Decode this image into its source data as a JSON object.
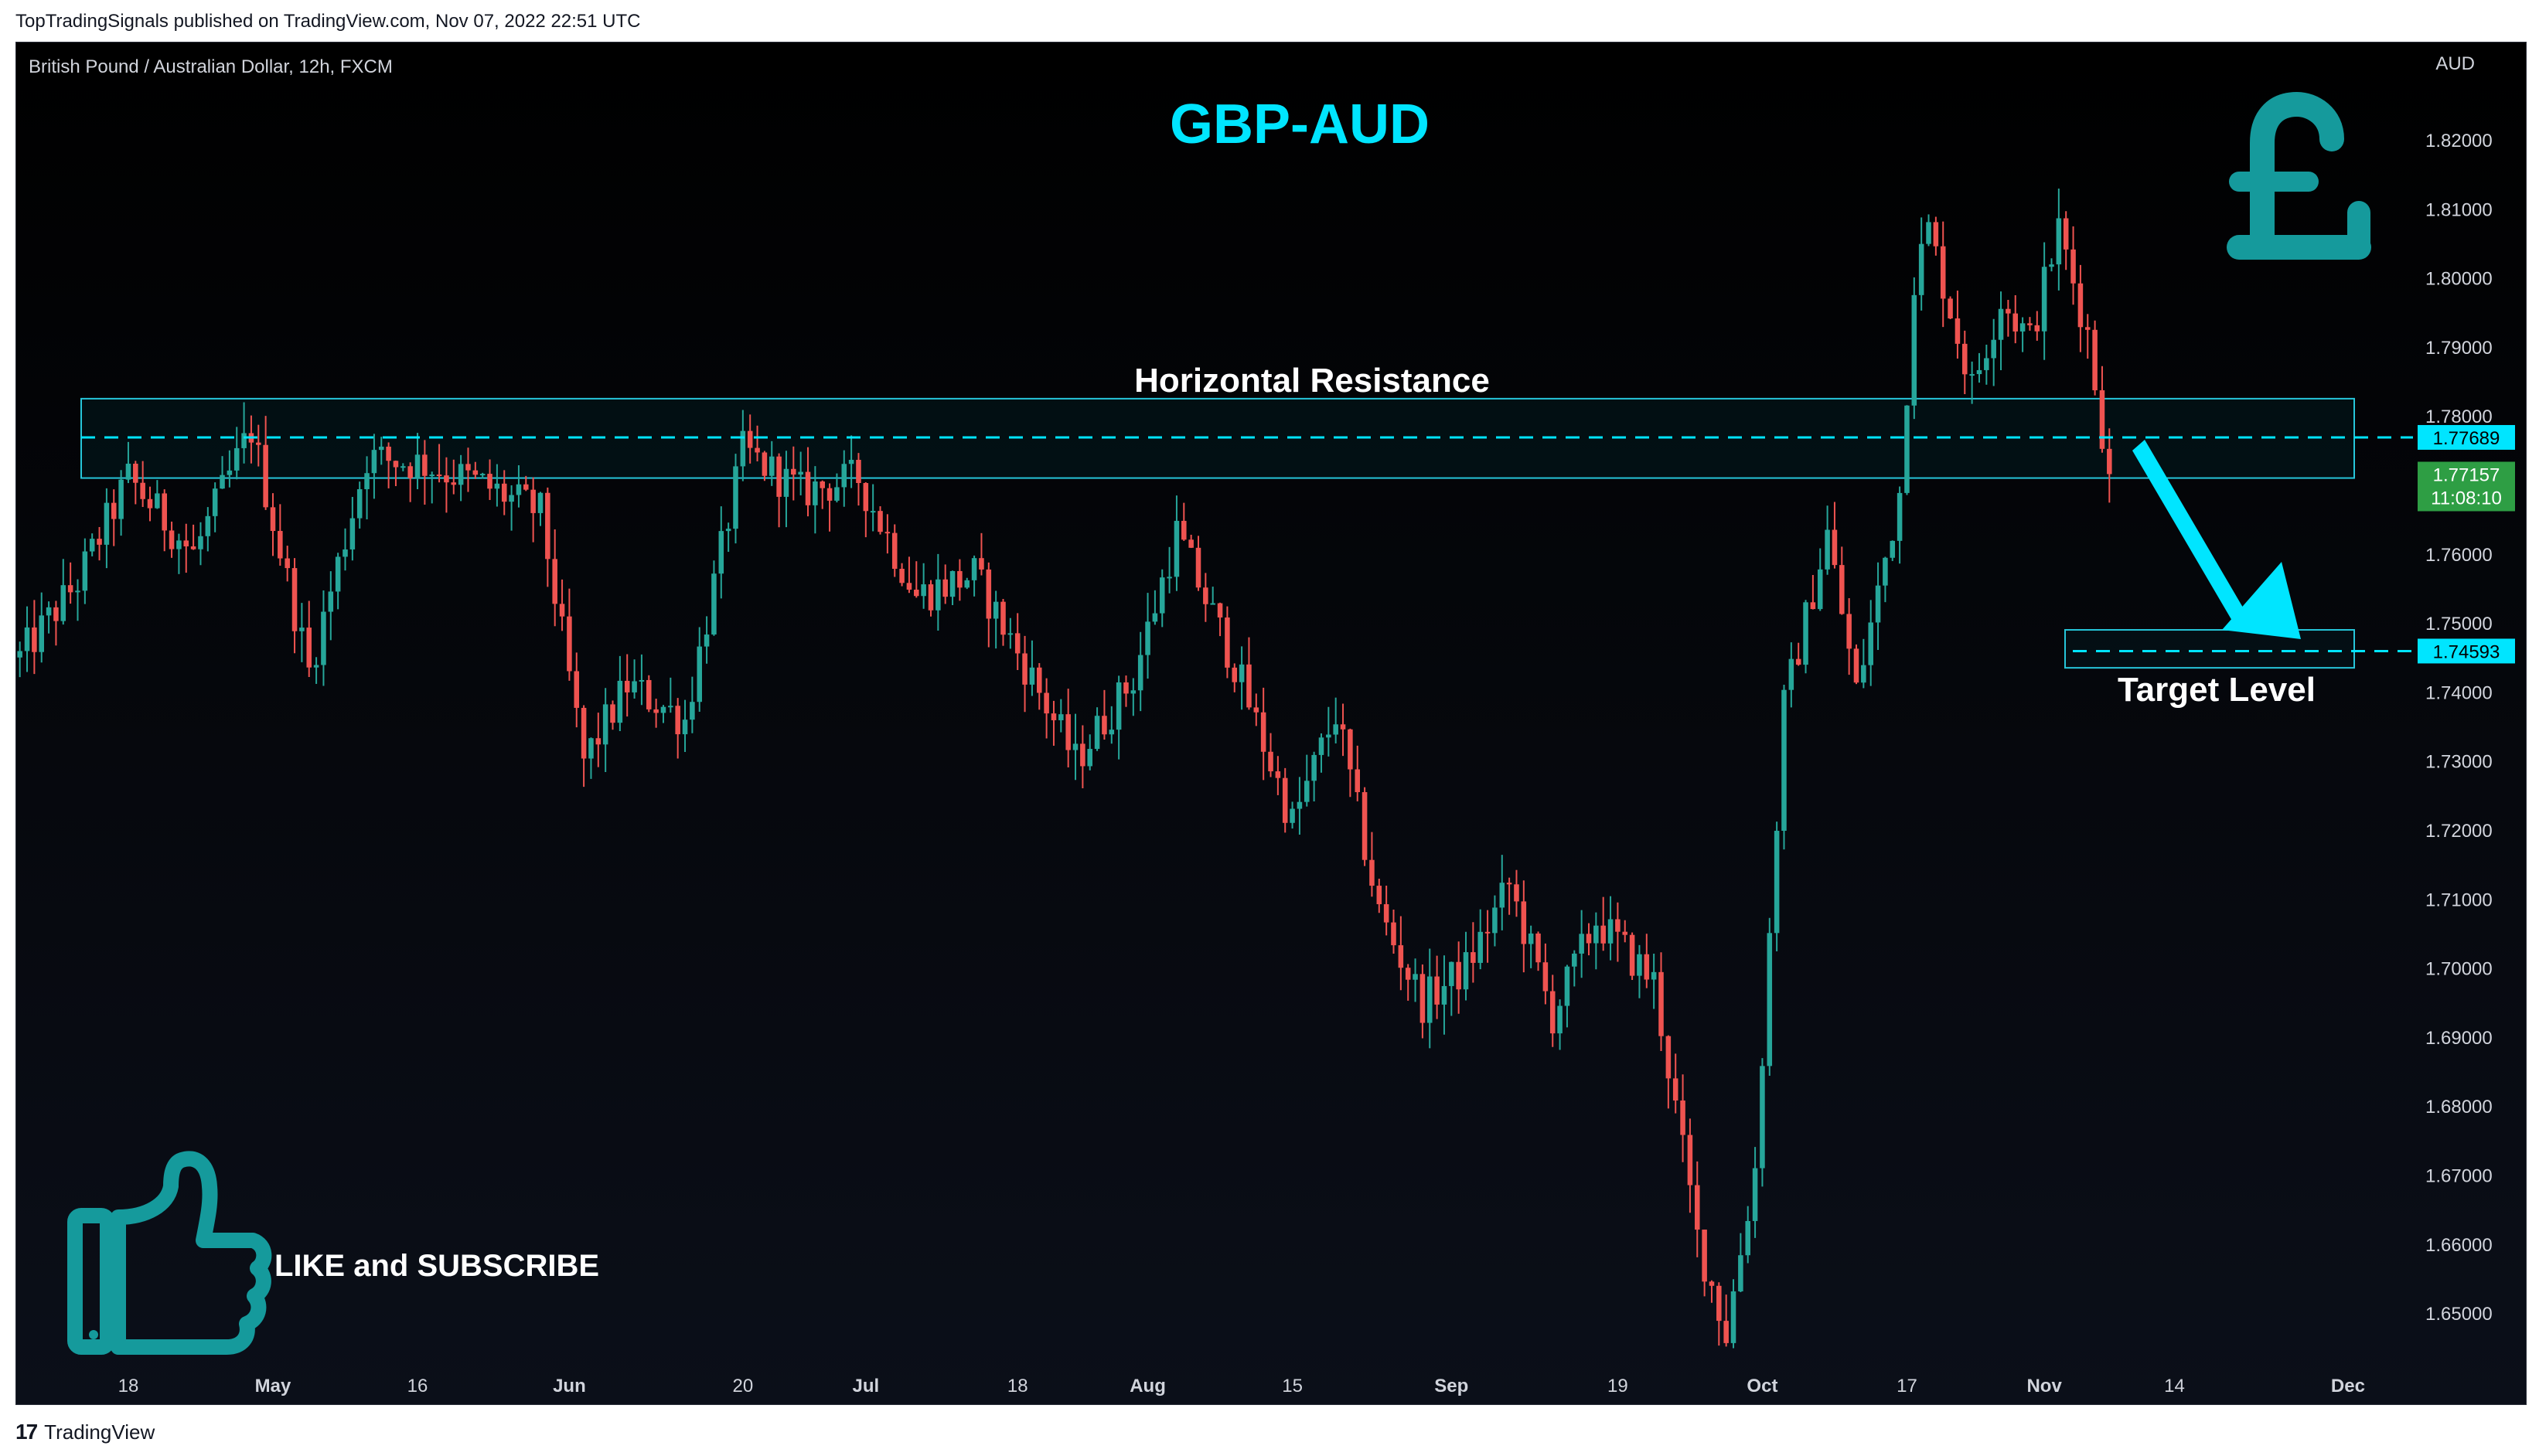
{
  "header": {
    "published_by": "TopTradingSignals published on TradingView.com, Nov 07, 2022 22:51 UTC"
  },
  "footer": {
    "logo": "17",
    "brand": "TradingView"
  },
  "panel": {
    "symbol_label": "British Pound / Australian Dollar, 12h, FXCM",
    "currency": "AUD"
  },
  "colors": {
    "up": "#26a69a",
    "down": "#ef5350",
    "accent": "#00e5ff",
    "background": "#000000",
    "text": "#d1d4dc",
    "last_price": "#2e9e44",
    "icon": "#159a9c"
  },
  "icons": [
    "pound-sterling-icon",
    "thumbs-up-icon"
  ],
  "chart_data": {
    "type": "candlestick",
    "title": "GBP-AUD",
    "symbol": "British Pound / Australian Dollar, 12h, FXCM",
    "y_unit": "AUD",
    "ylim": [
      1.64,
      1.83
    ],
    "y_ticks": [
      "1.82000",
      "1.81000",
      "1.80000",
      "1.79000",
      "1.78000",
      "1.77000",
      "1.76000",
      "1.75000",
      "1.74000",
      "1.73000",
      "1.72000",
      "1.71000",
      "1.70000",
      "1.69000",
      "1.68000",
      "1.67000",
      "1.66000",
      "1.65000"
    ],
    "x_ticks": [
      "18",
      "May",
      "16",
      "Jun",
      "20",
      "Jul",
      "18",
      "Aug",
      "15",
      "Sep",
      "19",
      "Oct",
      "17",
      "Nov",
      "14",
      "Dec"
    ],
    "x_tick_bars": [
      15,
      35,
      55,
      76,
      100,
      117,
      138,
      156,
      176,
      198,
      221,
      241,
      261,
      280,
      298,
      322
    ],
    "bar_count": 327,
    "current_bar": 289,
    "waypoints": [
      [
        0,
        1.745
      ],
      [
        8,
        1.756
      ],
      [
        15,
        1.771
      ],
      [
        24,
        1.76
      ],
      [
        32,
        1.778
      ],
      [
        40,
        1.743
      ],
      [
        48,
        1.774
      ],
      [
        56,
        1.773
      ],
      [
        64,
        1.77
      ],
      [
        72,
        1.766
      ],
      [
        78,
        1.73
      ],
      [
        84,
        1.741
      ],
      [
        92,
        1.736
      ],
      [
        100,
        1.775
      ],
      [
        108,
        1.769
      ],
      [
        116,
        1.771
      ],
      [
        124,
        1.754
      ],
      [
        132,
        1.757
      ],
      [
        140,
        1.742
      ],
      [
        146,
        1.73
      ],
      [
        154,
        1.742
      ],
      [
        160,
        1.763
      ],
      [
        168,
        1.744
      ],
      [
        176,
        1.721
      ],
      [
        182,
        1.737
      ],
      [
        188,
        1.708
      ],
      [
        194,
        1.695
      ],
      [
        200,
        1.7
      ],
      [
        206,
        1.712
      ],
      [
        212,
        1.693
      ],
      [
        218,
        1.707
      ],
      [
        226,
        1.698
      ],
      [
        232,
        1.661
      ],
      [
        236,
        1.647
      ],
      [
        240,
        1.671
      ],
      [
        244,
        1.738
      ],
      [
        250,
        1.763
      ],
      [
        254,
        1.74
      ],
      [
        260,
        1.769
      ],
      [
        262,
        1.8
      ],
      [
        264,
        1.807
      ],
      [
        270,
        1.784
      ],
      [
        274,
        1.797
      ],
      [
        278,
        1.791
      ],
      [
        282,
        1.807
      ],
      [
        286,
        1.792
      ],
      [
        289,
        1.771
      ]
    ],
    "levels": [
      {
        "name": "resistance",
        "value": 1.77689,
        "label": "1.77689"
      },
      {
        "name": "target",
        "value": 1.74593,
        "label": "1.74593"
      }
    ],
    "resistance_zone": {
      "low": 1.771,
      "high": 1.7825
    },
    "target_zone": {
      "low": 1.7435,
      "high": 1.749
    },
    "last_price": {
      "value": 1.77157,
      "label": "1.77157",
      "countdown": "11:08:10"
    },
    "annotations": {
      "title": "GBP-AUD",
      "resistance": "Horizontal Resistance",
      "target": "Target Level",
      "cta": "LIKE and SUBSCRIBE"
    }
  }
}
